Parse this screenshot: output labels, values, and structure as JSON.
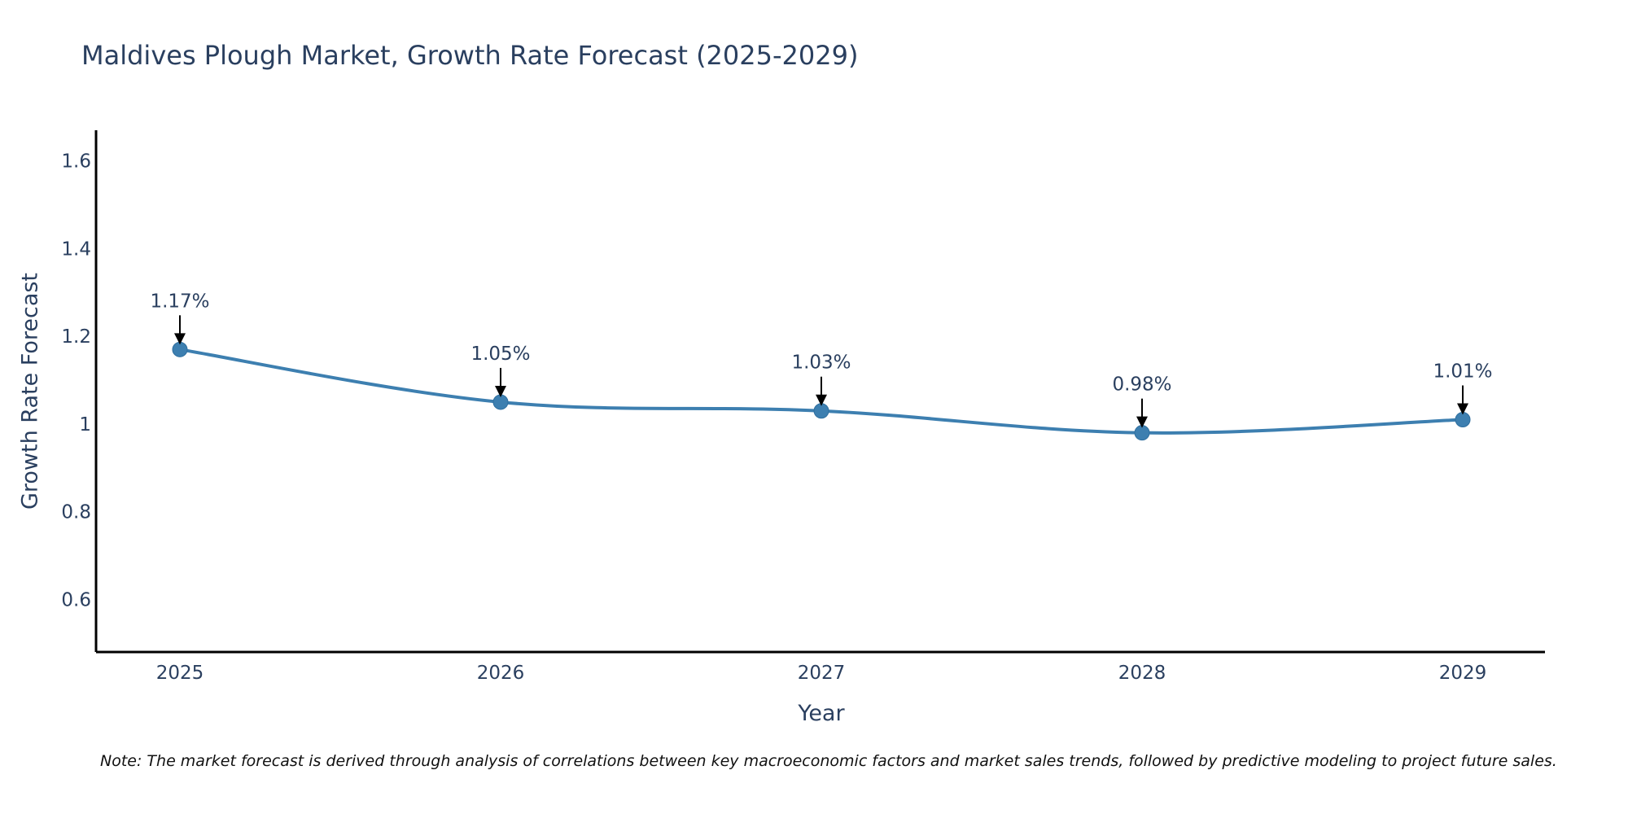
{
  "chart_data": {
    "type": "line",
    "title": "Maldives Plough Market, Growth Rate Forecast (2025-2029)",
    "xlabel": "Year",
    "ylabel": "Growth Rate Forecast",
    "categories": [
      "2025",
      "2026",
      "2027",
      "2028",
      "2029"
    ],
    "series": [
      {
        "name": "Growth Rate Forecast",
        "values": [
          1.17,
          1.05,
          1.03,
          0.98,
          1.01
        ]
      }
    ],
    "annotations": [
      "1.17%",
      "1.05%",
      "1.03%",
      "0.98%",
      "1.01%"
    ],
    "ylim": [
      0.48,
      1.67
    ],
    "yticks": [
      0.6,
      0.8,
      1.0,
      1.2,
      1.4,
      1.6
    ],
    "ytick_labels": [
      "0.6",
      "0.8",
      "1",
      "1.2",
      "1.4",
      "1.6"
    ],
    "grid": false,
    "legend": "none",
    "colors": {
      "line": "#3d7fb0",
      "marker": "#3d7fb0",
      "text": "#2a3f5f",
      "axis": "#000000",
      "arrow": "#000000"
    }
  },
  "note": "Note: The market forecast is derived through analysis of correlations between key macroeconomic factors and market sales trends, followed by predictive modeling to project future sales."
}
